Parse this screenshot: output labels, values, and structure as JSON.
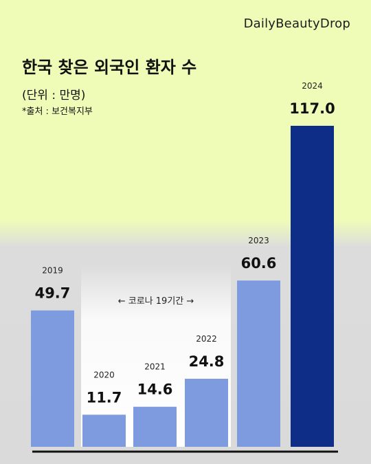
{
  "brand": "DailyBeautyDrop",
  "title": "한국 찾은 외국인 환자 수",
  "unit_note": "(단위 : 만명)",
  "source_note": "*출처 : 보건복지부",
  "covid_period_label": "← 코로나 19기간 →",
  "colors": {
    "bar": "#7e9be0",
    "highlight_bar": "#0d2d87",
    "axis": "#111111"
  },
  "chart_data": {
    "type": "bar",
    "title": "한국 찾은 외국인 환자 수",
    "ylabel": "(단위 : 만명)",
    "categories": [
      "2019",
      "2020",
      "2021",
      "2022",
      "2023",
      "2024"
    ],
    "values": [
      49.7,
      11.7,
      14.6,
      24.8,
      60.6,
      117.0
    ],
    "value_labels": [
      "49.7",
      "11.7",
      "14.6",
      "24.8",
      "60.6",
      "117.0"
    ],
    "highlight_category": "2024",
    "annotation": "← 코로나 19기간 →",
    "annotation_span": [
      "2020",
      "2022"
    ],
    "ylim": [
      0,
      117.0
    ],
    "grid": false
  }
}
